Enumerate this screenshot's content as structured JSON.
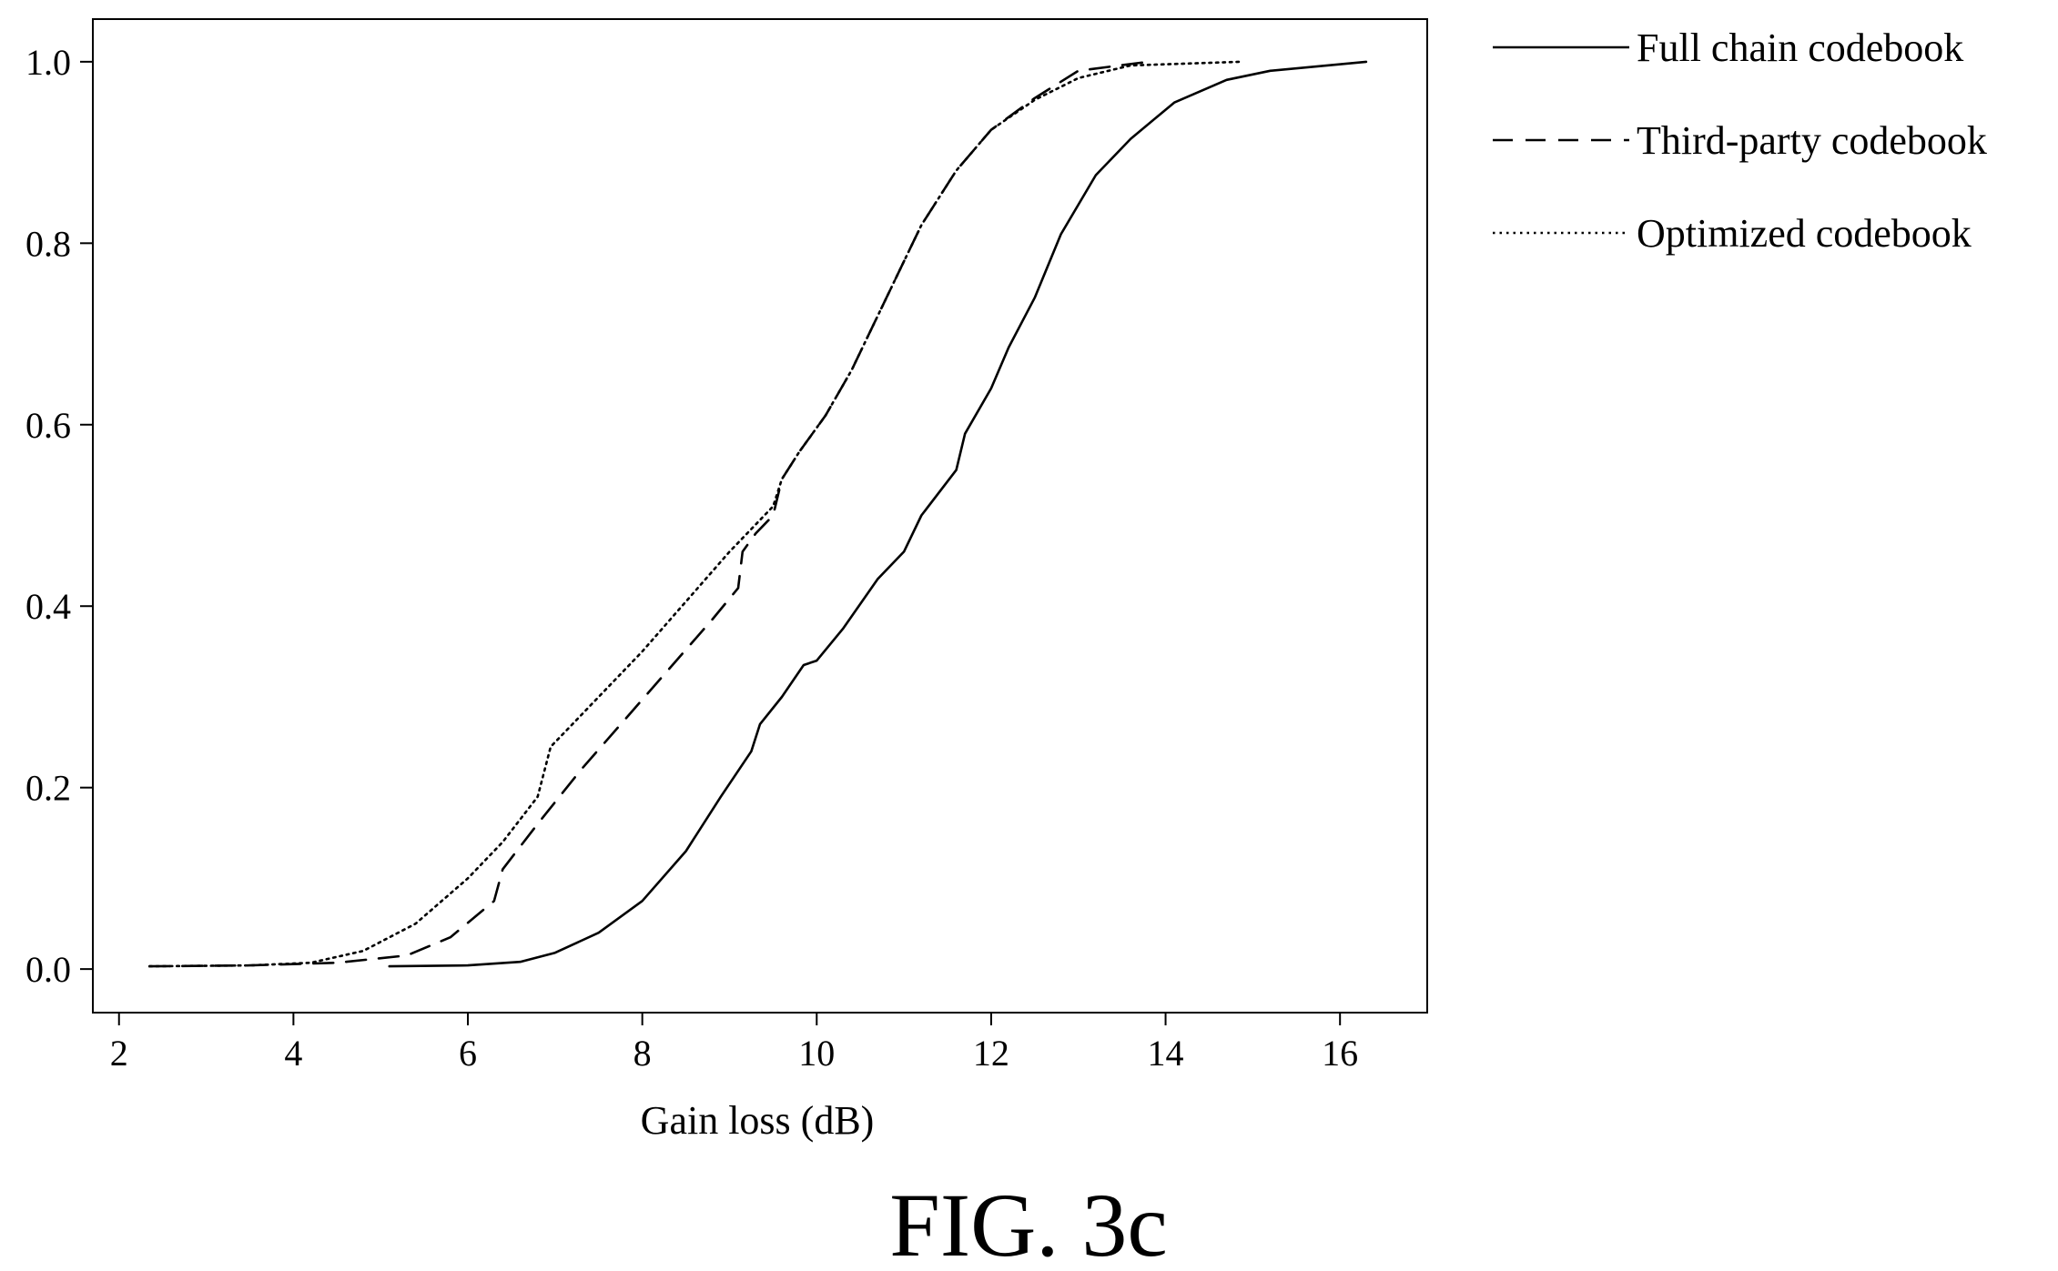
{
  "figure_label": "FIG. 3c",
  "chart_data": {
    "type": "line",
    "title": "",
    "xlabel": "Gain loss (dB)",
    "ylabel": "",
    "xlim": [
      1.7,
      17.0
    ],
    "ylim": [
      -0.048,
      1.047
    ],
    "xticks": [
      2,
      4,
      6,
      8,
      10,
      12,
      14,
      16
    ],
    "xtick_labels": [
      "2",
      "4",
      "6",
      "8",
      "10",
      "12",
      "14",
      "16"
    ],
    "yticks": [
      0.0,
      0.2,
      0.4,
      0.6,
      0.8,
      1.0
    ],
    "ytick_labels": [
      "0.0",
      "0.2",
      "0.4",
      "0.6",
      "0.8",
      "1.0"
    ],
    "grid": false,
    "legend_position": "outside-right-top",
    "series": [
      {
        "name": "Full chain codebook",
        "style": "solid",
        "color": "#000000",
        "points": [
          [
            5.1,
            0.003
          ],
          [
            6.0,
            0.004
          ],
          [
            6.6,
            0.008
          ],
          [
            7.0,
            0.018
          ],
          [
            7.5,
            0.04
          ],
          [
            8.0,
            0.075
          ],
          [
            8.5,
            0.13
          ],
          [
            8.9,
            0.19
          ],
          [
            9.25,
            0.24
          ],
          [
            9.35,
            0.27
          ],
          [
            9.6,
            0.3
          ],
          [
            9.85,
            0.335
          ],
          [
            10.0,
            0.34
          ],
          [
            10.3,
            0.375
          ],
          [
            10.7,
            0.43
          ],
          [
            11.0,
            0.46
          ],
          [
            11.2,
            0.5
          ],
          [
            11.6,
            0.55
          ],
          [
            11.7,
            0.59
          ],
          [
            12.0,
            0.64
          ],
          [
            12.2,
            0.685
          ],
          [
            12.5,
            0.74
          ],
          [
            12.8,
            0.81
          ],
          [
            13.2,
            0.875
          ],
          [
            13.6,
            0.915
          ],
          [
            14.1,
            0.955
          ],
          [
            14.7,
            0.98
          ],
          [
            15.2,
            0.99
          ],
          [
            16.3,
            1.0
          ]
        ]
      },
      {
        "name": "Third-party codebook",
        "style": "dashed",
        "color": "#000000",
        "points": [
          [
            2.35,
            0.003
          ],
          [
            3.5,
            0.004
          ],
          [
            4.5,
            0.007
          ],
          [
            5.3,
            0.015
          ],
          [
            5.8,
            0.035
          ],
          [
            6.3,
            0.075
          ],
          [
            6.4,
            0.11
          ],
          [
            6.8,
            0.16
          ],
          [
            7.3,
            0.22
          ],
          [
            7.8,
            0.275
          ],
          [
            8.3,
            0.33
          ],
          [
            8.8,
            0.385
          ],
          [
            9.1,
            0.42
          ],
          [
            9.15,
            0.46
          ],
          [
            9.3,
            0.48
          ],
          [
            9.5,
            0.5
          ],
          [
            9.6,
            0.54
          ],
          [
            9.8,
            0.57
          ],
          [
            10.1,
            0.61
          ],
          [
            10.4,
            0.66
          ],
          [
            10.8,
            0.74
          ],
          [
            11.2,
            0.82
          ],
          [
            11.6,
            0.88
          ],
          [
            12.0,
            0.925
          ],
          [
            12.5,
            0.96
          ],
          [
            13.0,
            0.99
          ],
          [
            13.8,
            1.0
          ]
        ]
      },
      {
        "name": "Optimized codebook",
        "style": "dotted",
        "color": "#000000",
        "points": [
          [
            2.35,
            0.003
          ],
          [
            3.5,
            0.004
          ],
          [
            4.2,
            0.007
          ],
          [
            4.8,
            0.02
          ],
          [
            5.4,
            0.05
          ],
          [
            6.0,
            0.1
          ],
          [
            6.4,
            0.14
          ],
          [
            6.8,
            0.19
          ],
          [
            6.95,
            0.245
          ],
          [
            7.2,
            0.27
          ],
          [
            7.6,
            0.31
          ],
          [
            8.0,
            0.35
          ],
          [
            8.5,
            0.405
          ],
          [
            9.0,
            0.46
          ],
          [
            9.3,
            0.49
          ],
          [
            9.5,
            0.51
          ],
          [
            9.6,
            0.54
          ],
          [
            9.8,
            0.57
          ],
          [
            10.1,
            0.61
          ],
          [
            10.4,
            0.66
          ],
          [
            10.8,
            0.74
          ],
          [
            11.2,
            0.82
          ],
          [
            11.6,
            0.88
          ],
          [
            12.0,
            0.925
          ],
          [
            12.5,
            0.958
          ],
          [
            13.0,
            0.982
          ],
          [
            13.6,
            0.996
          ],
          [
            14.85,
            1.0
          ]
        ]
      }
    ]
  }
}
